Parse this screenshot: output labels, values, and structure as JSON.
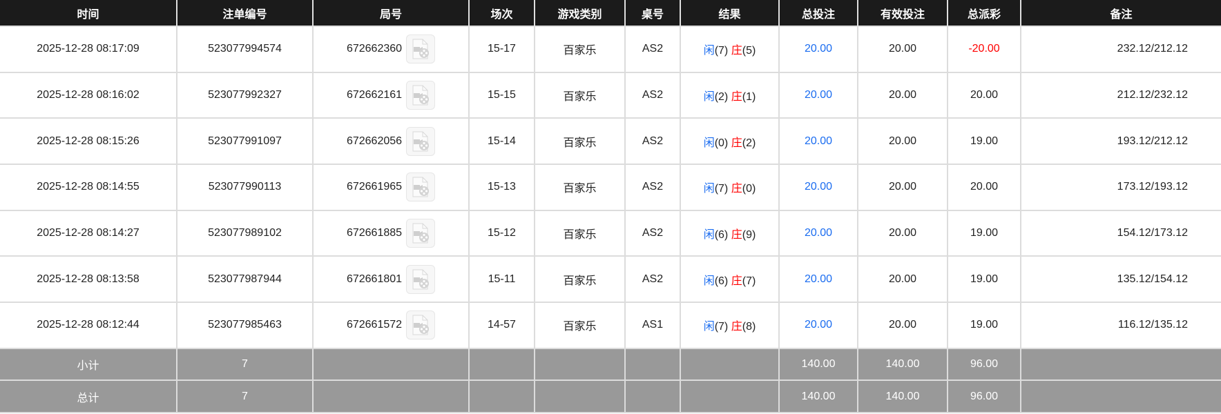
{
  "colors": {
    "header_bg": "#1b1b1b",
    "bet_blue": "#1a6cf0",
    "loss_red": "#ff0000",
    "summary_bg": "#999999"
  },
  "headers": [
    "时间",
    "注单编号",
    "局号",
    "场次",
    "游戏类别",
    "桌号",
    "结果",
    "总投注",
    "有效投注",
    "总派彩",
    "备注"
  ],
  "result_labels": {
    "player": "闲",
    "banker": "庄"
  },
  "rows": [
    {
      "time": "2025-12-28 08:17:09",
      "bet_id": "523077994574",
      "round_id": "672662360",
      "session": "15-17",
      "game": "百家乐",
      "table": "AS2",
      "player": "(7)",
      "banker": "(5)",
      "total_bet": "20.00",
      "valid_bet": "20.00",
      "payout": "-20.00",
      "payout_negative": true,
      "remark": "232.12/212.12"
    },
    {
      "time": "2025-12-28 08:16:02",
      "bet_id": "523077992327",
      "round_id": "672662161",
      "session": "15-15",
      "game": "百家乐",
      "table": "AS2",
      "player": "(2)",
      "banker": "(1)",
      "total_bet": "20.00",
      "valid_bet": "20.00",
      "payout": "20.00",
      "payout_negative": false,
      "remark": "212.12/232.12"
    },
    {
      "time": "2025-12-28 08:15:26",
      "bet_id": "523077991097",
      "round_id": "672662056",
      "session": "15-14",
      "game": "百家乐",
      "table": "AS2",
      "player": "(0)",
      "banker": "(2)",
      "total_bet": "20.00",
      "valid_bet": "20.00",
      "payout": "19.00",
      "payout_negative": false,
      "remark": "193.12/212.12"
    },
    {
      "time": "2025-12-28 08:14:55",
      "bet_id": "523077990113",
      "round_id": "672661965",
      "session": "15-13",
      "game": "百家乐",
      "table": "AS2",
      "player": "(7)",
      "banker": "(0)",
      "total_bet": "20.00",
      "valid_bet": "20.00",
      "payout": "20.00",
      "payout_negative": false,
      "remark": "173.12/193.12"
    },
    {
      "time": "2025-12-28 08:14:27",
      "bet_id": "523077989102",
      "round_id": "672661885",
      "session": "15-12",
      "game": "百家乐",
      "table": "AS2",
      "player": "(6)",
      "banker": "(9)",
      "total_bet": "20.00",
      "valid_bet": "20.00",
      "payout": "19.00",
      "payout_negative": false,
      "remark": "154.12/173.12"
    },
    {
      "time": "2025-12-28 08:13:58",
      "bet_id": "523077987944",
      "round_id": "672661801",
      "session": "15-11",
      "game": "百家乐",
      "table": "AS2",
      "player": "(6)",
      "banker": "(7)",
      "total_bet": "20.00",
      "valid_bet": "20.00",
      "payout": "19.00",
      "payout_negative": false,
      "remark": "135.12/154.12"
    },
    {
      "time": "2025-12-28 08:12:44",
      "bet_id": "523077985463",
      "round_id": "672661572",
      "session": "14-57",
      "game": "百家乐",
      "table": "AS1",
      "player": "(7)",
      "banker": "(8)",
      "total_bet": "20.00",
      "valid_bet": "20.00",
      "payout": "19.00",
      "payout_negative": false,
      "remark": "116.12/135.12"
    }
  ],
  "summary": [
    {
      "label": "小计",
      "count": "7",
      "total_bet": "140.00",
      "valid_bet": "140.00",
      "payout": "96.00"
    },
    {
      "label": "总计",
      "count": "7",
      "total_bet": "140.00",
      "valid_bet": "140.00",
      "payout": "96.00"
    }
  ]
}
